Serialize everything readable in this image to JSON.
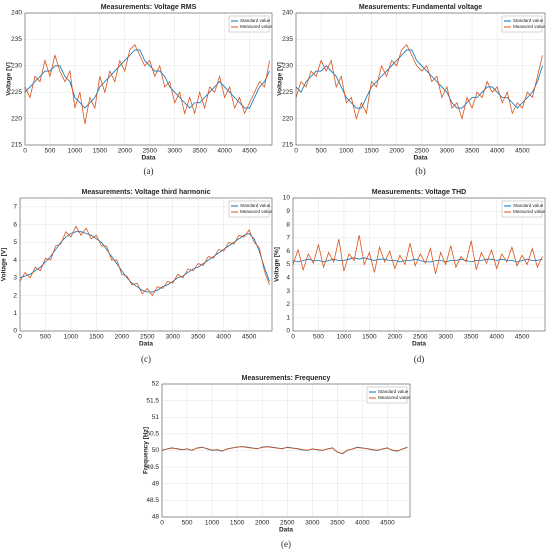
{
  "chart_data": [
    {
      "type": "line",
      "title": "Measurements: Voltage RMS",
      "xlabel": "Data",
      "ylabel": "Voltage [V]",
      "caption": "(a)",
      "grid": true,
      "legend": "upper right",
      "xlim": [
        0,
        4950
      ],
      "xticks": [
        0,
        500,
        1000,
        1500,
        2000,
        2500,
        3000,
        3500,
        4000,
        4500
      ],
      "ylim": [
        215,
        240
      ],
      "yticks": [
        215,
        220,
        225,
        230,
        235,
        240
      ],
      "x": [
        0,
        100,
        200,
        300,
        400,
        500,
        600,
        700,
        800,
        900,
        1000,
        1100,
        1200,
        1300,
        1400,
        1500,
        1600,
        1700,
        1800,
        1900,
        2000,
        2100,
        2200,
        2300,
        2400,
        2500,
        2600,
        2700,
        2800,
        2900,
        3000,
        3100,
        3200,
        3300,
        3400,
        3500,
        3600,
        3700,
        3800,
        3900,
        4000,
        4100,
        4200,
        4300,
        4400,
        4500,
        4600,
        4700,
        4800,
        4900
      ],
      "series": [
        {
          "name": "Standard value",
          "color": "#0072bd",
          "values": [
            225,
            226,
            227,
            228,
            229,
            229,
            230,
            230,
            228,
            227,
            224,
            223,
            222,
            223,
            224,
            226,
            227,
            228,
            229,
            230,
            231,
            232,
            233,
            233,
            231,
            230,
            229,
            229,
            228,
            226,
            225,
            224,
            223,
            222,
            223,
            223,
            224,
            225,
            226,
            227,
            226,
            225,
            224,
            223,
            222,
            222,
            224,
            226,
            227,
            229
          ]
        },
        {
          "name": "Measured value",
          "color": "#d95319",
          "values": [
            226,
            224,
            228,
            227,
            231,
            228,
            232,
            229,
            227,
            229,
            222,
            225,
            219,
            224,
            222,
            228,
            225,
            229,
            227,
            231,
            229,
            233,
            234,
            232,
            230,
            231,
            228,
            230,
            226,
            227,
            223,
            225,
            221,
            224,
            221,
            225,
            222,
            226,
            225,
            228,
            224,
            226,
            222,
            224,
            221,
            223,
            225,
            227,
            226,
            231
          ]
        }
      ]
    },
    {
      "type": "line",
      "title": "Measurements: Fundamental voltage",
      "xlabel": "Data",
      "ylabel": "Voltage [V]",
      "caption": "(b)",
      "grid": true,
      "legend": "upper right",
      "xlim": [
        0,
        4950
      ],
      "xticks": [
        0,
        500,
        1000,
        1500,
        2000,
        2500,
        3000,
        3500,
        4000,
        4500
      ],
      "ylim": [
        215,
        240
      ],
      "yticks": [
        215,
        220,
        225,
        230,
        235,
        240
      ],
      "x": [
        0,
        100,
        200,
        300,
        400,
        500,
        600,
        700,
        800,
        900,
        1000,
        1100,
        1200,
        1300,
        1400,
        1500,
        1600,
        1700,
        1800,
        1900,
        2000,
        2100,
        2200,
        2300,
        2400,
        2500,
        2600,
        2700,
        2800,
        2900,
        3000,
        3100,
        3200,
        3300,
        3400,
        3500,
        3600,
        3700,
        3800,
        3900,
        4000,
        4100,
        4200,
        4300,
        4400,
        4500,
        4600,
        4700,
        4800,
        4900
      ],
      "series": [
        {
          "name": "Standard value",
          "color": "#0072bd",
          "values": [
            226,
            225,
            227,
            228,
            229,
            229,
            230,
            229,
            228,
            226,
            224,
            223,
            222,
            222,
            224,
            226,
            227,
            228,
            229,
            230,
            231,
            232,
            233,
            233,
            231,
            230,
            229,
            228,
            227,
            226,
            225,
            223,
            222,
            222,
            223,
            224,
            224,
            225,
            226,
            226,
            225,
            224,
            224,
            223,
            222,
            223,
            224,
            225,
            227,
            230
          ]
        },
        {
          "name": "Measured value",
          "color": "#d95319",
          "values": [
            224,
            227,
            226,
            229,
            228,
            231,
            229,
            231,
            226,
            228,
            223,
            224,
            220,
            223,
            221,
            227,
            226,
            230,
            228,
            231,
            230,
            233,
            234,
            232,
            230,
            229,
            230,
            227,
            228,
            224,
            226,
            222,
            223,
            220,
            224,
            222,
            225,
            224,
            227,
            225,
            226,
            223,
            225,
            221,
            223,
            222,
            225,
            224,
            228,
            232
          ]
        }
      ]
    },
    {
      "type": "line",
      "title": "Measurements: Voltage third harmonic",
      "xlabel": "Data",
      "ylabel": "Voltage [V]",
      "caption": "(c)",
      "grid": true,
      "legend": "upper right",
      "xlim": [
        0,
        4950
      ],
      "xticks": [
        0,
        500,
        1000,
        1500,
        2000,
        2500,
        3000,
        3500,
        4000,
        4500
      ],
      "ylim": [
        0,
        7.5
      ],
      "yticks": [
        0,
        1,
        2,
        3,
        4,
        5,
        6,
        7
      ],
      "x": [
        0,
        100,
        200,
        300,
        400,
        500,
        600,
        700,
        800,
        900,
        1000,
        1100,
        1200,
        1300,
        1400,
        1500,
        1600,
        1700,
        1800,
        1900,
        2000,
        2100,
        2200,
        2300,
        2400,
        2500,
        2600,
        2700,
        2800,
        2900,
        3000,
        3100,
        3200,
        3300,
        3400,
        3500,
        3600,
        3700,
        3800,
        3900,
        4000,
        4100,
        4200,
        4300,
        4400,
        4500,
        4600,
        4700,
        4800,
        4900
      ],
      "series": [
        {
          "name": "Standard value",
          "color": "#0072bd",
          "values": [
            3.0,
            3.1,
            3.2,
            3.4,
            3.6,
            3.9,
            4.2,
            4.6,
            5.0,
            5.3,
            5.5,
            5.6,
            5.6,
            5.5,
            5.4,
            5.2,
            5.0,
            4.6,
            4.2,
            3.8,
            3.4,
            3.0,
            2.7,
            2.5,
            2.3,
            2.2,
            2.2,
            2.3,
            2.5,
            2.6,
            2.8,
            3.0,
            3.1,
            3.3,
            3.5,
            3.6,
            3.8,
            4.0,
            4.2,
            4.4,
            4.6,
            4.8,
            5.0,
            5.2,
            5.4,
            5.5,
            5.2,
            4.5,
            3.6,
            2.8
          ]
        },
        {
          "name": "Measured value",
          "color": "#d95319",
          "values": [
            2.8,
            3.3,
            3.0,
            3.6,
            3.4,
            4.1,
            4.0,
            4.8,
            4.9,
            5.6,
            5.3,
            5.9,
            5.4,
            5.8,
            5.2,
            5.4,
            4.8,
            4.8,
            4.0,
            4.0,
            3.2,
            3.1,
            2.6,
            2.7,
            2.1,
            2.4,
            2.0,
            2.5,
            2.4,
            2.8,
            2.7,
            3.2,
            3.0,
            3.5,
            3.4,
            3.8,
            3.7,
            4.2,
            4.1,
            4.6,
            4.5,
            5.0,
            4.9,
            5.4,
            5.3,
            5.7,
            5.0,
            4.7,
            3.4,
            2.6
          ]
        }
      ]
    },
    {
      "type": "line",
      "title": "Measurements: Voltage THD",
      "xlabel": "Data",
      "ylabel": "Voltage [%]",
      "caption": "(d)",
      "grid": true,
      "legend": "upper right",
      "xlim": [
        0,
        4950
      ],
      "xticks": [
        0,
        500,
        1000,
        1500,
        2000,
        2500,
        3000,
        3500,
        4000,
        4500
      ],
      "ylim": [
        0,
        10
      ],
      "yticks": [
        0,
        1,
        2,
        3,
        4,
        5,
        6,
        7,
        8,
        9,
        10
      ],
      "x": [
        0,
        100,
        200,
        300,
        400,
        500,
        600,
        700,
        800,
        900,
        1000,
        1100,
        1200,
        1300,
        1400,
        1500,
        1600,
        1700,
        1800,
        1900,
        2000,
        2100,
        2200,
        2300,
        2400,
        2500,
        2600,
        2700,
        2800,
        2900,
        3000,
        3100,
        3200,
        3300,
        3400,
        3500,
        3600,
        3700,
        3800,
        3900,
        4000,
        4100,
        4200,
        4300,
        4400,
        4500,
        4600,
        4700,
        4800,
        4900
      ],
      "series": [
        {
          "name": "Standard value",
          "color": "#0072bd",
          "values": [
            5.3,
            5.2,
            5.3,
            5.4,
            5.3,
            5.3,
            5.2,
            5.3,
            5.4,
            5.3,
            5.3,
            5.4,
            5.5,
            5.4,
            5.5,
            5.4,
            5.3,
            5.4,
            5.4,
            5.3,
            5.3,
            5.2,
            5.3,
            5.3,
            5.4,
            5.3,
            5.2,
            5.2,
            5.3,
            5.3,
            5.2,
            5.3,
            5.3,
            5.4,
            5.3,
            5.2,
            5.3,
            5.3,
            5.4,
            5.4,
            5.3,
            5.4,
            5.3,
            5.3,
            5.2,
            5.3,
            5.4,
            5.3,
            5.3,
            5.4
          ]
        },
        {
          "name": "Measured value",
          "color": "#d95319",
          "values": [
            5.0,
            6.1,
            4.6,
            5.8,
            5.1,
            6.5,
            4.8,
            5.9,
            5.2,
            6.9,
            4.5,
            5.8,
            5.3,
            7.2,
            5.0,
            5.9,
            4.4,
            6.3,
            5.2,
            6.0,
            4.7,
            5.7,
            5.0,
            6.6,
            4.9,
            5.8,
            5.1,
            6.2,
            4.3,
            5.9,
            5.0,
            6.4,
            4.8,
            5.6,
            5.2,
            6.8,
            4.6,
            5.9,
            5.1,
            6.1,
            4.7,
            5.8,
            5.2,
            6.3,
            4.9,
            5.7,
            5.0,
            6.2,
            4.8,
            5.6
          ]
        }
      ]
    },
    {
      "type": "line",
      "title": "Measurements: Frequency",
      "xlabel": "Data",
      "ylabel": "Frequency [Hz]",
      "caption": "(e)",
      "grid": true,
      "legend": "upper right",
      "xlim": [
        0,
        4950
      ],
      "xticks": [
        0,
        500,
        1000,
        1500,
        2000,
        2500,
        3000,
        3500,
        4000,
        4500
      ],
      "ylim": [
        48,
        52
      ],
      "yticks": [
        48,
        48.5,
        49,
        49.5,
        50,
        50.5,
        51,
        51.5,
        52
      ],
      "x": [
        0,
        100,
        200,
        300,
        400,
        500,
        600,
        700,
        800,
        900,
        1000,
        1100,
        1200,
        1300,
        1400,
        1500,
        1600,
        1700,
        1800,
        1900,
        2000,
        2100,
        2200,
        2300,
        2400,
        2500,
        2600,
        2700,
        2800,
        2900,
        3000,
        3100,
        3200,
        3300,
        3400,
        3500,
        3600,
        3700,
        3800,
        3900,
        4000,
        4100,
        4200,
        4300,
        4400,
        4500,
        4600,
        4700,
        4800,
        4900
      ],
      "series": [
        {
          "name": "Standard value",
          "color": "#0072bd",
          "values": [
            50.0,
            50.05,
            50.08,
            50.05,
            50.02,
            50.05,
            50.0,
            50.08,
            50.1,
            50.05,
            50.0,
            50.02,
            49.98,
            50.05,
            50.08,
            50.1,
            50.12,
            50.1,
            50.08,
            50.05,
            50.1,
            50.12,
            50.1,
            50.08,
            50.05,
            50.1,
            50.08,
            50.05,
            50.02,
            50.0,
            50.05,
            50.02,
            50.0,
            50.05,
            50.08,
            49.95,
            49.9,
            50.0,
            50.05,
            50.1,
            50.08,
            50.05,
            50.02,
            50.0,
            50.05,
            50.08,
            50.0,
            49.98,
            50.05,
            50.1
          ]
        },
        {
          "name": "Measured value",
          "color": "#d95319",
          "values": [
            50.01,
            50.04,
            50.07,
            50.06,
            50.03,
            50.04,
            50.01,
            50.07,
            50.09,
            50.06,
            50.01,
            50.03,
            49.99,
            50.04,
            50.07,
            50.11,
            50.11,
            50.09,
            50.07,
            50.06,
            50.09,
            50.11,
            50.09,
            50.07,
            50.06,
            50.09,
            50.07,
            50.06,
            50.03,
            50.01,
            50.04,
            50.03,
            50.01,
            50.04,
            50.07,
            49.96,
            49.91,
            50.01,
            50.04,
            50.09,
            50.07,
            50.06,
            50.03,
            50.01,
            50.04,
            50.07,
            50.01,
            49.99,
            50.04,
            50.09
          ]
        }
      ]
    }
  ]
}
